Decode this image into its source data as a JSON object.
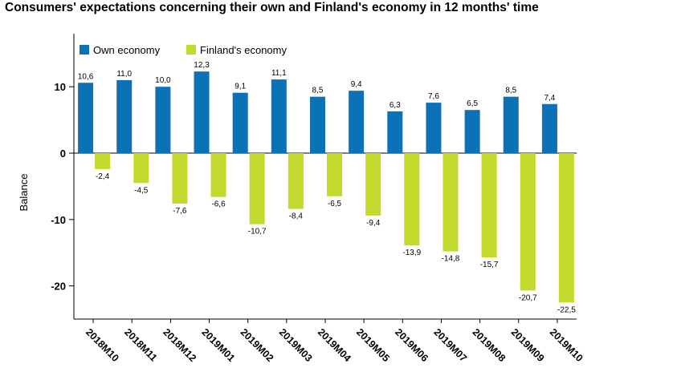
{
  "title": "Consumers' expectations concerning their own and Finland's economy in 12 months' time",
  "chart_data": {
    "type": "bar",
    "title": "Consumers' expectations concerning their own and Finland's economy in 12 months' time",
    "xlabel": "",
    "ylabel": "Balance",
    "ylim": [
      -25,
      18
    ],
    "yticks": [
      10,
      0,
      -10,
      -20
    ],
    "ytick_labels": [
      "10",
      "0",
      "-10",
      "-20"
    ],
    "grid": false,
    "legend_position": "top-left",
    "categories": [
      "2018M10",
      "2018M11",
      "2018M12",
      "2019M01",
      "2019M02",
      "2019M03",
      "2019M04",
      "2019M05",
      "2019M06",
      "2019M07",
      "2019M08",
      "2019M09",
      "2019M10"
    ],
    "series": [
      {
        "name": "Own economy",
        "color": "#0c71b7",
        "values": [
          10.6,
          11.0,
          10.0,
          12.3,
          9.1,
          11.1,
          8.5,
          9.4,
          6.3,
          7.6,
          6.5,
          8.5,
          7.4
        ],
        "labels": [
          "10,6",
          "11,0",
          "10,0",
          "12,3",
          "9,1",
          "11,1",
          "8,5",
          "9,4",
          "6,3",
          "7,6",
          "6,5",
          "8,5",
          "7,4"
        ]
      },
      {
        "name": "Finland's economy",
        "color": "#c3d92e",
        "values": [
          -2.4,
          -4.5,
          -7.6,
          -6.6,
          -10.7,
          -8.4,
          -6.5,
          -9.4,
          -13.9,
          -14.8,
          -15.7,
          -20.7,
          -22.5
        ],
        "labels": [
          "-2,4",
          "-4,5",
          "-7,6",
          "-6,6",
          "-10,7",
          "-8,4",
          "-6,5",
          "-9,4",
          "-13,9",
          "-14,8",
          "-15,7",
          "-20,7",
          "-22,5"
        ]
      }
    ]
  }
}
